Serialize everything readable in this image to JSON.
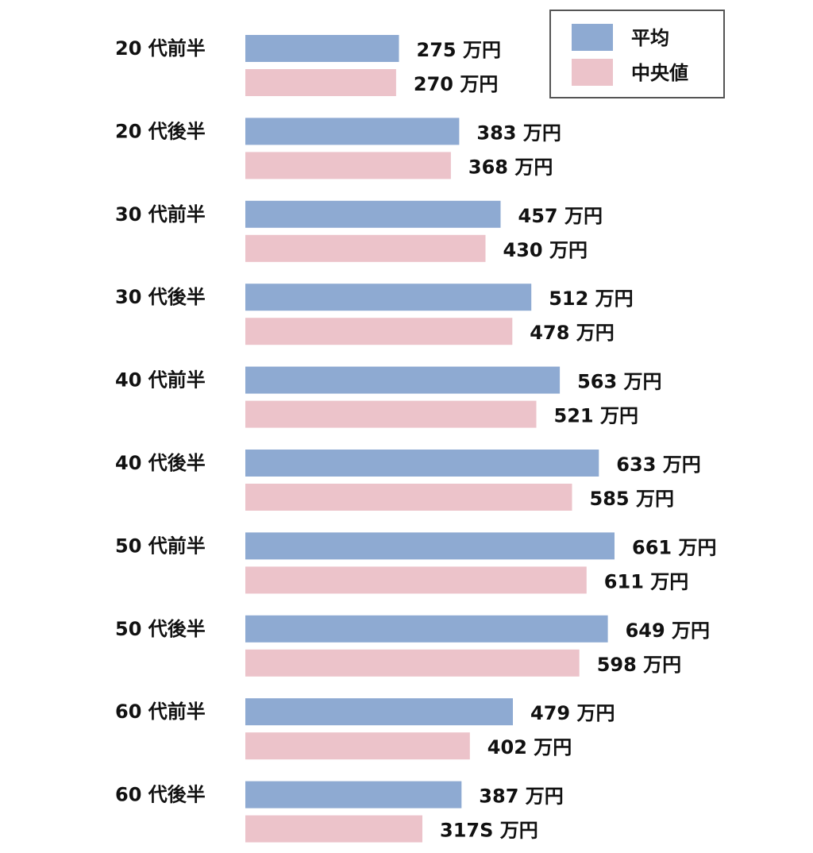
{
  "chart_data": {
    "type": "bar",
    "orientation": "horizontal",
    "categories": [
      "20 代前半",
      "20 代後半",
      "30 代前半",
      "30 代後半",
      "40 代前半",
      "40 代後半",
      "50 代前半",
      "50 代後半",
      "60 代前半",
      "60 代後半"
    ],
    "unit": "万円",
    "series": [
      {
        "name": "平均",
        "color": "#8eaad2",
        "values": [
          275,
          383,
          457,
          512,
          563,
          633,
          661,
          649,
          479,
          387
        ],
        "labels": [
          "275",
          "383",
          "457",
          "512",
          "563",
          "633",
          "661",
          "649",
          "479",
          "387"
        ]
      },
      {
        "name": "中央値",
        "color": "#ecc3ca",
        "values": [
          270,
          368,
          430,
          478,
          521,
          585,
          611,
          598,
          402,
          317
        ],
        "labels": [
          "270",
          "368",
          "430",
          "478",
          "521",
          "585",
          "611",
          "598",
          "402",
          "317S"
        ]
      }
    ],
    "xlim": [
      0,
      700
    ],
    "grid": false,
    "legend_position": "top-right"
  }
}
